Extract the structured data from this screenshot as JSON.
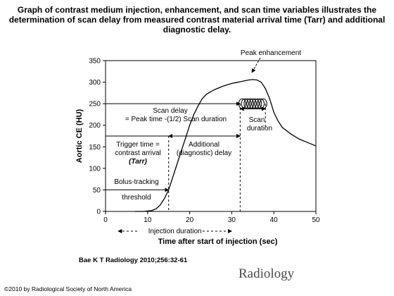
{
  "slide": {
    "title_line1": "Graph of contrast medium injection, enhancement, and scan time variables illustrates the",
    "title_line2": "determination of scan delay from measured contrast material arrival time (Tarr) and additional",
    "title_line3": "diagnostic delay.",
    "citation": "Bae K T Radiology 2010;256:32-61",
    "publisher": "Radiology",
    "copyright": "©2010 by Radiological Society of North America"
  },
  "chart_data": {
    "type": "line",
    "xlabel": "Time after start of injection (sec)",
    "ylabel": "Aortic CE (HU)",
    "xlim": [
      0,
      50
    ],
    "ylim": [
      0,
      350
    ],
    "x_ticks": [
      0,
      10,
      20,
      30,
      40,
      50
    ],
    "y_ticks": [
      0,
      50,
      100,
      150,
      200,
      250,
      300,
      350
    ],
    "grid": false,
    "series": [
      {
        "x": [
          7,
          9,
          11,
          12,
          13,
          14,
          15,
          16,
          17,
          18,
          19,
          20,
          21,
          22,
          23,
          24,
          25,
          26,
          27,
          28,
          29,
          30,
          31,
          32,
          33,
          34,
          35,
          36,
          37,
          38,
          39,
          40,
          41,
          42,
          44,
          46,
          48,
          50
        ],
        "y": [
          0,
          0,
          2,
          6,
          15,
          30,
          50,
          80,
          110,
          140,
          170,
          200,
          225,
          245,
          262,
          272,
          278,
          283,
          287,
          291,
          294,
          297,
          299,
          301,
          303,
          305,
          306,
          305,
          300,
          285,
          262,
          230,
          210,
          195,
          180,
          168,
          160,
          152
        ]
      }
    ],
    "reference_lines": {
      "bolus_threshold_hu": 50,
      "trigger_time_sec": 15,
      "scan_delay_level_hu": 175,
      "peak_time_level_hu": 250,
      "scan_start_sec": 32
    },
    "scan_window": {
      "start_sec": 32,
      "end_sec": 38,
      "hu": 250
    },
    "injection_duration_sec": [
      3,
      30
    ],
    "annotations": {
      "peak_enhancement": "Peak enhancement",
      "scan_delay_line1": "Scan delay",
      "scan_delay_line2": "= Peak time -(1/2) Scan duration",
      "scan_duration_line1": "Scan",
      "scan_duration_line2": "duration",
      "trigger_line1": "Trigger time =",
      "trigger_line2": "contrast arrival",
      "trigger_line3": "(Tarr)",
      "additional_line1": "Additional",
      "additional_line2": "(diagnostic) delay",
      "bolus_line1": "Bolus-tracking",
      "bolus_line2": "threshold",
      "injection_duration": "Injection duration"
    }
  }
}
